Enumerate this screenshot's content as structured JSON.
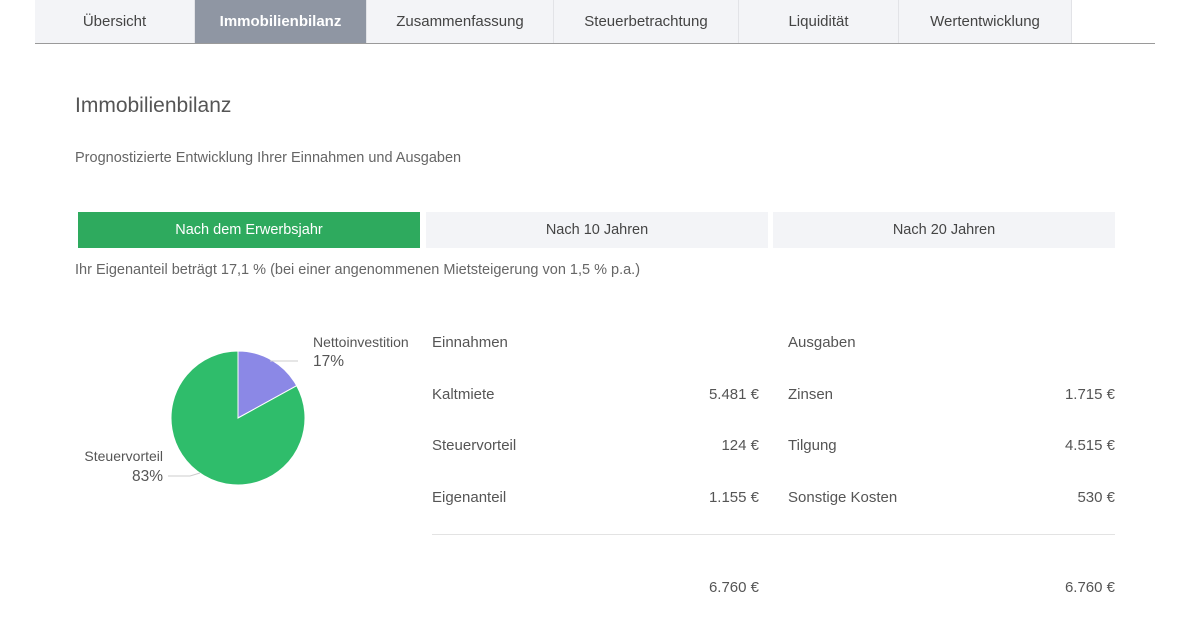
{
  "tabs": [
    {
      "label": "Übersicht",
      "active": false
    },
    {
      "label": "Immobilienbilanz",
      "active": true
    },
    {
      "label": "Zusammenfassung",
      "active": false
    },
    {
      "label": "Steuerbetrachtung",
      "active": false
    },
    {
      "label": "Liquidität",
      "active": false
    },
    {
      "label": "Wertentwicklung",
      "active": false
    }
  ],
  "page": {
    "title": "Immobilienbilanz",
    "subtitle": "Prognostizierte Entwicklung Ihrer Einnahmen und Ausgaben"
  },
  "periods": [
    {
      "label": "Nach dem Erwerbsjahr",
      "active": true
    },
    {
      "label": "Nach 10 Jahren",
      "active": false
    },
    {
      "label": "Nach 20 Jahren",
      "active": false
    }
  ],
  "note": "Ihr Eigenanteil beträgt 17,1 % (bei einer angenommenen Mietsteigerung von 1,5 % p.a.)",
  "pie": {
    "slices": [
      {
        "label": "Nettoinvestition",
        "pct_text": "17%",
        "value": 17,
        "color": "#8b88e6"
      },
      {
        "label": "Steuervorteil",
        "pct_text": "83%",
        "value": 83,
        "color": "#2fbd6b"
      }
    ]
  },
  "income": {
    "header": "Einnahmen",
    "rows": [
      {
        "label": "Kaltmiete",
        "value": "5.481 €"
      },
      {
        "label": "Steuervorteil",
        "value": "124 €"
      },
      {
        "label": "Eigenanteil",
        "value": "1.155 €"
      }
    ],
    "total": "6.760 €"
  },
  "expenses": {
    "header": "Ausgaben",
    "rows": [
      {
        "label": "Zinsen",
        "value": "1.715 €"
      },
      {
        "label": "Tilgung",
        "value": "4.515 €"
      },
      {
        "label": "Sonstige Kosten",
        "value": "530 €"
      }
    ],
    "total": "6.760 €"
  }
}
